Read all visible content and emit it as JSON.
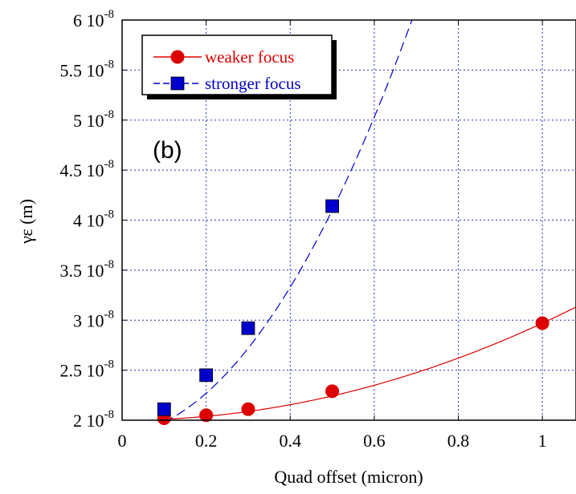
{
  "chart_data": {
    "type": "line",
    "annotation": "(b)",
    "xlabel": "Quad offset (micron)",
    "ylabel": "γε (m)",
    "xlim": [
      0,
      1.08
    ],
    "ylim": [
      2e-08,
      6e-08
    ],
    "x_ticks": [
      {
        "value": 0,
        "label": "0"
      },
      {
        "value": 0.2,
        "label": "0.2"
      },
      {
        "value": 0.4,
        "label": "0.4"
      },
      {
        "value": 0.6,
        "label": "0.6"
      },
      {
        "value": 0.8,
        "label": "0.8"
      },
      {
        "value": 1,
        "label": "1"
      }
    ],
    "y_ticks": [
      {
        "value": 2e-08,
        "mant": "2",
        "exp": "-8"
      },
      {
        "value": 2.5e-08,
        "mant": "2.5",
        "exp": "-8"
      },
      {
        "value": 3e-08,
        "mant": "3",
        "exp": "-8"
      },
      {
        "value": 3.5e-08,
        "mant": "3.5",
        "exp": "-8"
      },
      {
        "value": 4e-08,
        "mant": "4",
        "exp": "-8"
      },
      {
        "value": 4.5e-08,
        "mant": "4.5",
        "exp": "-8"
      },
      {
        "value": 5e-08,
        "mant": "5",
        "exp": "-8"
      },
      {
        "value": 5.5e-08,
        "mant": "5.5",
        "exp": "-8"
      },
      {
        "value": 6e-08,
        "mant": "6",
        "exp": "-8"
      }
    ],
    "grid": true,
    "legend_position": "top-left",
    "series": [
      {
        "name": "weaker focus",
        "color": "#dd0000",
        "marker": "circle",
        "line": "solid",
        "x": [
          0.1,
          0.2,
          0.3,
          0.5,
          1.0
        ],
        "y": [
          2.02e-08,
          2.05e-08,
          2.11e-08,
          2.29e-08,
          2.97e-08
        ],
        "fit": {
          "a": 2e-08,
          "b": 0.0,
          "c": 9.7e-09
        }
      },
      {
        "name": "stronger focus",
        "color": "#0000cc",
        "marker": "square",
        "line": "dashed",
        "x": [
          0.1,
          0.2,
          0.3,
          0.5
        ],
        "y": [
          2.11e-08,
          2.45e-08,
          2.92e-08,
          4.14e-08
        ],
        "fit": {
          "a": 1.85e-08,
          "b": 5e-09,
          "c": 8e-08
        }
      }
    ]
  }
}
